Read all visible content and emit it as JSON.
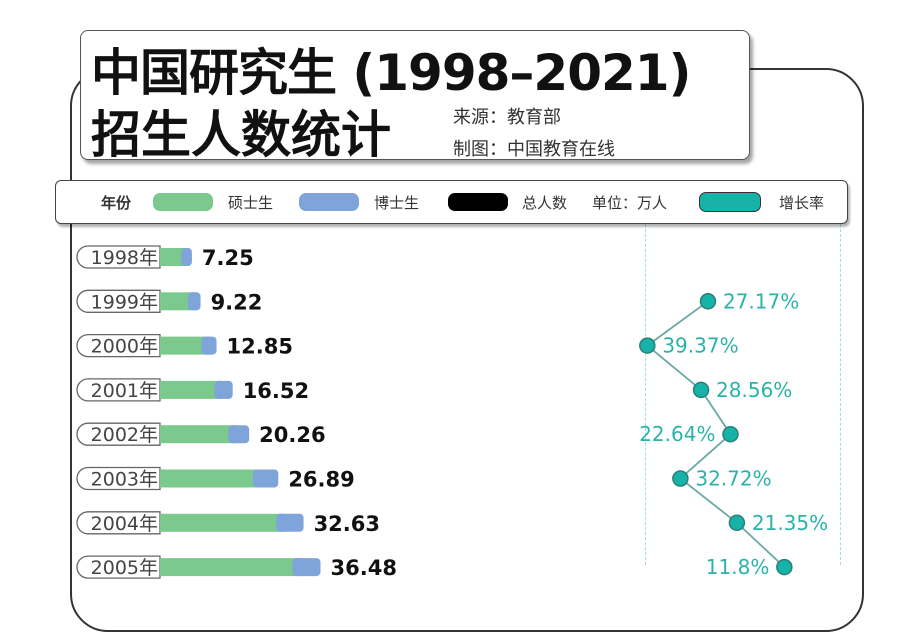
{
  "title_line1": "中国研究生 (1998–2021)",
  "title_line2": "招生人数统计",
  "source": "来源：教育部",
  "maker": "制图：中国教育在线",
  "legend": {
    "year": "年份",
    "masters": "硕士生",
    "doctors": "博士生",
    "total": "总人数",
    "unit": "单位：万人",
    "growth": "增长率"
  },
  "colors": {
    "masters": "#7cc98d",
    "doctors": "#7ea4d9",
    "total": "#000000",
    "growth": "#17b3a8"
  },
  "chart_data": {
    "type": "bar",
    "orientation": "horizontal",
    "stacked": true,
    "unit": "万人",
    "categories": [
      "1998年",
      "1999年",
      "2000年",
      "2001年",
      "2002年",
      "2003年",
      "2004年",
      "2005年"
    ],
    "series": [
      {
        "name": "硕士生",
        "values": [
          5.75,
          7.23,
          10.34,
          13.3,
          16.42,
          22.02,
          27.3,
          31.0
        ]
      },
      {
        "name": "博士生",
        "values": [
          1.5,
          1.99,
          2.51,
          3.22,
          3.84,
          4.87,
          5.33,
          5.48
        ]
      }
    ],
    "totals": {
      "name": "总人数",
      "labels": [
        "7.25",
        "9.22",
        "12.85",
        "16.52",
        "20.26",
        "26.89",
        "32.63",
        "36.48"
      ]
    },
    "growth_rate": {
      "name": "增长率",
      "type": "line",
      "categories": [
        "1999年",
        "2000年",
        "2001年",
        "2002年",
        "2003年",
        "2004年",
        "2005年"
      ],
      "values": [
        27.17,
        39.37,
        28.56,
        22.64,
        32.72,
        21.35,
        11.8
      ],
      "labels": [
        "27.17%",
        "39.37%",
        "28.56%",
        "22.64%",
        "32.72%",
        "21.35%",
        "11.8%"
      ],
      "range": [
        0,
        40
      ],
      "reversed": true
    }
  }
}
